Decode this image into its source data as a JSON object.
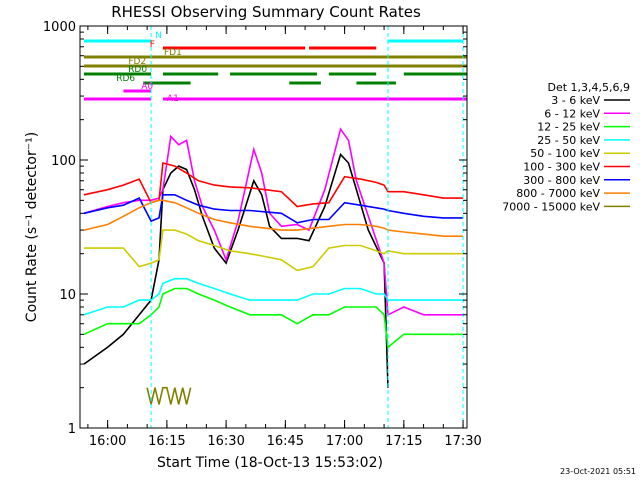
{
  "chart_data": {
    "type": "line",
    "title": "RHESSI Observing Summary Count Rates",
    "xlabel": "Start Time (18-Oct-13 15:53:02)",
    "ylabel": "Count Rate (s⁻¹ detector⁻¹)",
    "y_scale": "log",
    "ylim": [
      1,
      1000
    ],
    "xlim": [
      "15:53",
      "17:31"
    ],
    "x_ticks": [
      "16:00",
      "16:15",
      "16:30",
      "16:45",
      "17:00",
      "17:15",
      "17:30"
    ],
    "y_ticks": [
      "1",
      "10",
      "100",
      "1000"
    ],
    "grid": false,
    "legend_position": "right",
    "legend_title": "Det 1,3,4,5,6,9",
    "series": [
      {
        "name": "3 - 6 keV",
        "color": "#000000",
        "x": [
          "15:54",
          "16:00",
          "16:04",
          "16:08",
          "16:11",
          "16:13",
          "16:14",
          "16:16",
          "16:18",
          "16:20",
          "16:22",
          "16:24",
          "16:27",
          "16:30",
          "16:33",
          "16:37",
          "16:39",
          "16:41",
          "16:44",
          "16:48",
          "16:51",
          "16:55",
          "16:59",
          "17:01",
          "17:03",
          "17:06",
          "17:10",
          "17:11"
        ],
        "y": [
          3,
          4,
          5,
          7,
          9,
          18,
          60,
          80,
          90,
          85,
          60,
          38,
          22,
          17,
          30,
          70,
          55,
          32,
          26,
          26,
          25,
          45,
          110,
          95,
          60,
          30,
          17,
          2
        ]
      },
      {
        "name": "6 - 12 keV",
        "color": "#ff00ff",
        "x": [
          "15:54",
          "16:00",
          "16:04",
          "16:08",
          "16:11",
          "16:13",
          "16:14",
          "16:16",
          "16:18",
          "16:20",
          "16:22",
          "16:24",
          "16:27",
          "16:30",
          "16:33",
          "16:37",
          "16:39",
          "16:41",
          "16:44",
          "16:48",
          "16:51",
          "16:55",
          "16:59",
          "17:01",
          "17:03",
          "17:06",
          "17:10",
          "17:11",
          "17:15",
          "17:20",
          "17:25",
          "17:30"
        ],
        "y": [
          40,
          45,
          48,
          50,
          50,
          52,
          60,
          150,
          130,
          140,
          70,
          45,
          30,
          18,
          35,
          120,
          80,
          40,
          32,
          33,
          30,
          60,
          170,
          140,
          70,
          38,
          17,
          7,
          8,
          7,
          7,
          7
        ]
      },
      {
        "name": "12 - 25 keV",
        "color": "#00ff00",
        "x": [
          "15:54",
          "16:00",
          "16:04",
          "16:08",
          "16:11",
          "16:13",
          "16:14",
          "16:17",
          "16:20",
          "16:23",
          "16:27",
          "16:31",
          "16:36",
          "16:40",
          "16:44",
          "16:48",
          "16:52",
          "16:56",
          "17:00",
          "17:04",
          "17:08",
          "17:10",
          "17:11",
          "17:15",
          "17:20",
          "17:25",
          "17:30"
        ],
        "y": [
          5,
          6,
          6,
          6,
          7,
          8,
          10,
          11,
          11,
          10,
          9,
          8,
          7,
          7,
          7,
          6,
          7,
          7,
          8,
          8,
          8,
          7,
          4,
          5,
          5,
          5,
          5
        ]
      },
      {
        "name": "25 - 50 keV",
        "color": "#00ffff",
        "x": [
          "15:54",
          "16:00",
          "16:04",
          "16:08",
          "16:11",
          "16:13",
          "16:14",
          "16:17",
          "16:20",
          "16:23",
          "16:27",
          "16:31",
          "16:36",
          "16:40",
          "16:44",
          "16:48",
          "16:52",
          "16:56",
          "17:00",
          "17:04",
          "17:08",
          "17:10",
          "17:11",
          "17:15",
          "17:20",
          "17:25",
          "17:30"
        ],
        "y": [
          7,
          8,
          8,
          9,
          9,
          10,
          12,
          13,
          13,
          12,
          11,
          10,
          9,
          9,
          9,
          9,
          10,
          10,
          11,
          11,
          10,
          10,
          9,
          9,
          9,
          9,
          9
        ]
      },
      {
        "name": "50 - 100 keV",
        "color": "#cccc00",
        "x": [
          "15:54",
          "16:00",
          "16:04",
          "16:08",
          "16:11",
          "16:13",
          "16:14",
          "16:17",
          "16:20",
          "16:23",
          "16:27",
          "16:31",
          "16:36",
          "16:40",
          "16:44",
          "16:48",
          "16:52",
          "16:56",
          "17:00",
          "17:04",
          "17:08",
          "17:10",
          "17:11",
          "17:15",
          "17:20",
          "17:25",
          "17:30"
        ],
        "y": [
          22,
          22,
          22,
          16,
          17,
          18,
          30,
          30,
          28,
          25,
          23,
          21,
          20,
          19,
          18,
          15,
          16,
          22,
          23,
          23,
          21,
          20,
          21,
          20,
          20,
          20,
          20
        ]
      },
      {
        "name": "100 - 300 keV",
        "color": "#ff0000",
        "x": [
          "15:54",
          "16:00",
          "16:04",
          "16:08",
          "16:11",
          "16:13",
          "16:14",
          "16:17",
          "16:20",
          "16:23",
          "16:27",
          "16:31",
          "16:36",
          "16:40",
          "16:44",
          "16:48",
          "16:52",
          "16:56",
          "17:00",
          "17:04",
          "17:08",
          "17:10",
          "17:11",
          "17:15",
          "17:20",
          "17:25",
          "17:30"
        ],
        "y": [
          55,
          60,
          65,
          72,
          48,
          50,
          95,
          90,
          80,
          70,
          65,
          63,
          62,
          60,
          58,
          45,
          47,
          48,
          75,
          72,
          68,
          65,
          58,
          58,
          55,
          52,
          52
        ]
      },
      {
        "name": "300 - 800 keV",
        "color": "#0000ff",
        "x": [
          "15:54",
          "16:00",
          "16:04",
          "16:08",
          "16:11",
          "16:13",
          "16:14",
          "16:17",
          "16:20",
          "16:23",
          "16:27",
          "16:31",
          "16:36",
          "16:40",
          "16:44",
          "16:48",
          "16:52",
          "16:56",
          "17:00",
          "17:04",
          "17:08",
          "17:10",
          "17:11",
          "17:15",
          "17:20",
          "17:25",
          "17:30"
        ],
        "y": [
          40,
          44,
          46,
          52,
          35,
          37,
          55,
          55,
          50,
          46,
          43,
          42,
          42,
          41,
          40,
          34,
          36,
          36,
          48,
          46,
          44,
          43,
          42,
          40,
          38,
          37,
          37
        ]
      },
      {
        "name": "800 - 7000 keV",
        "color": "#ff8000",
        "x": [
          "15:54",
          "16:00",
          "16:04",
          "16:08",
          "16:11",
          "16:13",
          "16:14",
          "16:17",
          "16:20",
          "16:23",
          "16:27",
          "16:31",
          "16:36",
          "16:40",
          "16:44",
          "16:48",
          "16:52",
          "16:56",
          "17:00",
          "17:04",
          "17:08",
          "17:10",
          "17:11",
          "17:15",
          "17:20",
          "17:25",
          "17:30"
        ],
        "y": [
          30,
          33,
          38,
          44,
          48,
          50,
          50,
          48,
          44,
          40,
          36,
          34,
          32,
          31,
          30,
          30,
          31,
          32,
          33,
          33,
          32,
          31,
          30,
          29,
          28,
          27,
          27
        ]
      },
      {
        "name": "7000 - 15000 keV",
        "color": "#808000",
        "x": [
          "16:10",
          "16:11",
          "16:12",
          "16:13",
          "16:14",
          "16:15",
          "16:16",
          "16:17",
          "16:18",
          "16:19",
          "16:20",
          "16:21"
        ],
        "y": [
          2,
          1.5,
          2,
          1.5,
          2,
          2,
          1.5,
          2,
          1.5,
          2,
          1.5,
          2
        ]
      }
    ],
    "event_bars": [
      {
        "label": "N",
        "color": "#00ffff",
        "segments": [
          [
            "15:54",
            "16:11"
          ],
          [
            "17:11",
            "17:30"
          ]
        ]
      },
      {
        "label": "F",
        "color": "#ff0000",
        "segments": [
          [
            "16:14",
            "16:50"
          ],
          [
            "16:51",
            "17:08"
          ]
        ]
      },
      {
        "label": "FD1",
        "color": "#808000",
        "segments": [
          [
            "15:54",
            "17:31"
          ]
        ]
      },
      {
        "label": "FD2",
        "color": "#808000",
        "segments": [
          [
            "15:54",
            "17:31"
          ]
        ]
      },
      {
        "label": "RD0",
        "color": "#008000",
        "segments": [
          [
            "15:54",
            "16:11"
          ],
          [
            "16:14",
            "16:28"
          ],
          [
            "16:31",
            "16:53"
          ],
          [
            "16:56",
            "17:08"
          ],
          [
            "17:15",
            "17:31"
          ]
        ]
      },
      {
        "label": "RD6",
        "color": "#008000",
        "segments": [
          [
            "16:09",
            "16:21"
          ],
          [
            "16:46",
            "16:54"
          ],
          [
            "17:03",
            "17:13"
          ]
        ]
      },
      {
        "label": "A0",
        "color": "#ff00ff",
        "segments": [
          [
            "16:04",
            "16:11"
          ]
        ]
      },
      {
        "label": "A1",
        "color": "#ff00ff",
        "segments": [
          [
            "15:54",
            "16:11"
          ],
          [
            "16:14",
            "17:31"
          ]
        ]
      }
    ],
    "vertical_markers": [
      "16:11",
      "17:11",
      "17:30"
    ]
  },
  "footer": {
    "timestamp": "23-Oct-2021 05:51"
  }
}
